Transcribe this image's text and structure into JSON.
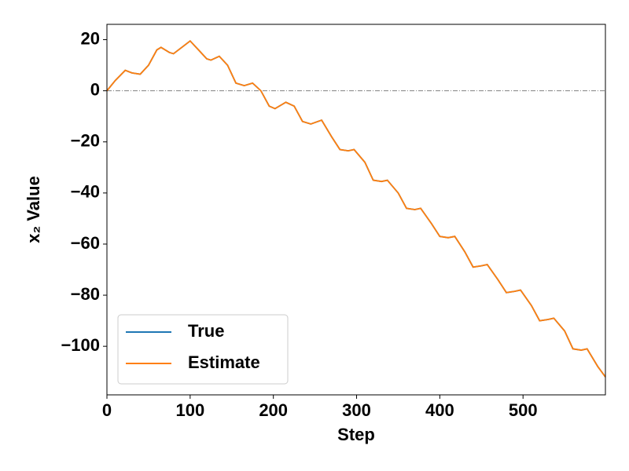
{
  "chart_data": {
    "type": "line",
    "xlabel": "Step",
    "ylabel": "x₂ Value",
    "x": [
      0,
      10,
      22,
      30,
      40,
      50,
      60,
      65,
      75,
      80,
      90,
      100,
      110,
      120,
      125,
      135,
      145,
      155,
      165,
      175,
      185,
      195,
      202,
      215,
      225,
      235,
      245,
      258,
      270,
      280,
      290,
      297,
      310,
      320,
      330,
      337,
      350,
      360,
      370,
      377,
      390,
      400,
      410,
      418,
      430,
      440,
      450,
      457,
      470,
      480,
      490,
      497,
      510,
      520,
      530,
      537,
      550,
      560,
      570,
      577,
      590,
      599
    ],
    "series": [
      {
        "name": "True",
        "color": "#1f77b4",
        "values": [
          0,
          4,
          8,
          7,
          6.5,
          10,
          16,
          17,
          15,
          14.5,
          17,
          19.5,
          16,
          12.5,
          12,
          13.5,
          10,
          3,
          2,
          3,
          0,
          -6,
          -7,
          -4.5,
          -6,
          -12,
          -13,
          -11.5,
          -18,
          -23,
          -23.5,
          -23,
          -28,
          -35,
          -35.5,
          -35,
          -40,
          -46,
          -46.5,
          -46,
          -52,
          -57,
          -57.5,
          -57,
          -63,
          -69,
          -68.5,
          -68,
          -74,
          -79,
          -78.5,
          -78,
          -84,
          -90,
          -89.5,
          -89,
          -94,
          -101,
          -101.5,
          -101,
          -108,
          -112
        ]
      },
      {
        "name": "Estimate",
        "color": "#ff7f0e",
        "values": [
          0,
          4,
          8,
          7,
          6.5,
          10,
          16,
          17,
          15,
          14.5,
          17,
          19.5,
          16,
          12.5,
          12,
          13.5,
          10,
          3,
          2,
          3,
          0,
          -6,
          -7,
          -4.5,
          -6,
          -12,
          -13,
          -11.5,
          -18,
          -23,
          -23.5,
          -23,
          -28,
          -35,
          -35.5,
          -35,
          -40,
          -46,
          -46.5,
          -46,
          -52,
          -57,
          -57.5,
          -57,
          -63,
          -69,
          -68.5,
          -68,
          -74,
          -79,
          -78.5,
          -78,
          -84,
          -90,
          -89.5,
          -89,
          -94,
          -101,
          -101.5,
          -101,
          -108,
          -112
        ]
      }
    ],
    "hline": 0,
    "xlim": [
      0,
      599
    ],
    "xticks": [
      0,
      100,
      200,
      300,
      400,
      500
    ],
    "ylim": [
      -119,
      26
    ],
    "yticks": [
      {
        "value": -100,
        "label": "−100"
      },
      {
        "value": -80,
        "label": "−80"
      },
      {
        "value": -60,
        "label": "−60"
      },
      {
        "value": -40,
        "label": "−40"
      },
      {
        "value": -20,
        "label": "−20"
      },
      0,
      20
    ],
    "legend": "lower left"
  }
}
